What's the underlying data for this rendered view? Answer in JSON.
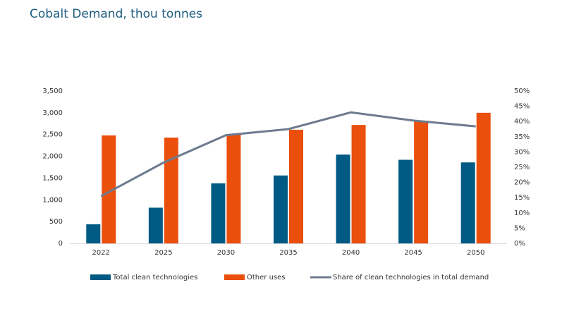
{
  "chart_data": {
    "type": "bar-line",
    "title": "Cobalt Demand, thou tonnes",
    "categories": [
      "2022",
      "2025",
      "2030",
      "2035",
      "2040",
      "2045",
      "2050"
    ],
    "series": [
      {
        "name": "Total clean technologies",
        "type": "bar",
        "color": "#005a84",
        "values": [
          440,
          820,
          1380,
          1560,
          2040,
          1920,
          1860
        ]
      },
      {
        "name": "Other uses",
        "type": "bar",
        "color": "#ea4f0c",
        "values": [
          2480,
          2430,
          2510,
          2610,
          2720,
          2820,
          3000
        ]
      },
      {
        "name": "Share of clean technologies in total demand",
        "type": "line",
        "axis": "y2",
        "color": "#6e7b8f",
        "values": [
          15.5,
          26.5,
          35.5,
          37.5,
          43,
          40.3,
          38.4
        ]
      }
    ],
    "ylim": [
      0,
      3500
    ],
    "yticks": [
      0,
      500,
      {
        "value": 1000,
        "label": "1,000"
      },
      {
        "value": 1500,
        "label": "1,500"
      },
      {
        "value": 2000,
        "label": "2,000"
      },
      {
        "value": 2500,
        "label": "2,500"
      },
      {
        "value": 3000,
        "label": "3,000"
      },
      {
        "value": 3500,
        "label": "3,500"
      }
    ],
    "y2lim": [
      0,
      50
    ],
    "y2ticks": [
      {
        "value": 0,
        "label": "0%"
      },
      {
        "value": 5,
        "label": "5%"
      },
      {
        "value": 10,
        "label": "10%"
      },
      {
        "value": 15,
        "label": "15%"
      },
      {
        "value": 20,
        "label": "20%"
      },
      {
        "value": 25,
        "label": "25%"
      },
      {
        "value": 30,
        "label": "30%"
      },
      {
        "value": 35,
        "label": "35%"
      },
      {
        "value": 40,
        "label": "40%"
      },
      {
        "value": 45,
        "label": "45%"
      },
      {
        "value": 50,
        "label": "50%"
      }
    ],
    "grid": false
  }
}
